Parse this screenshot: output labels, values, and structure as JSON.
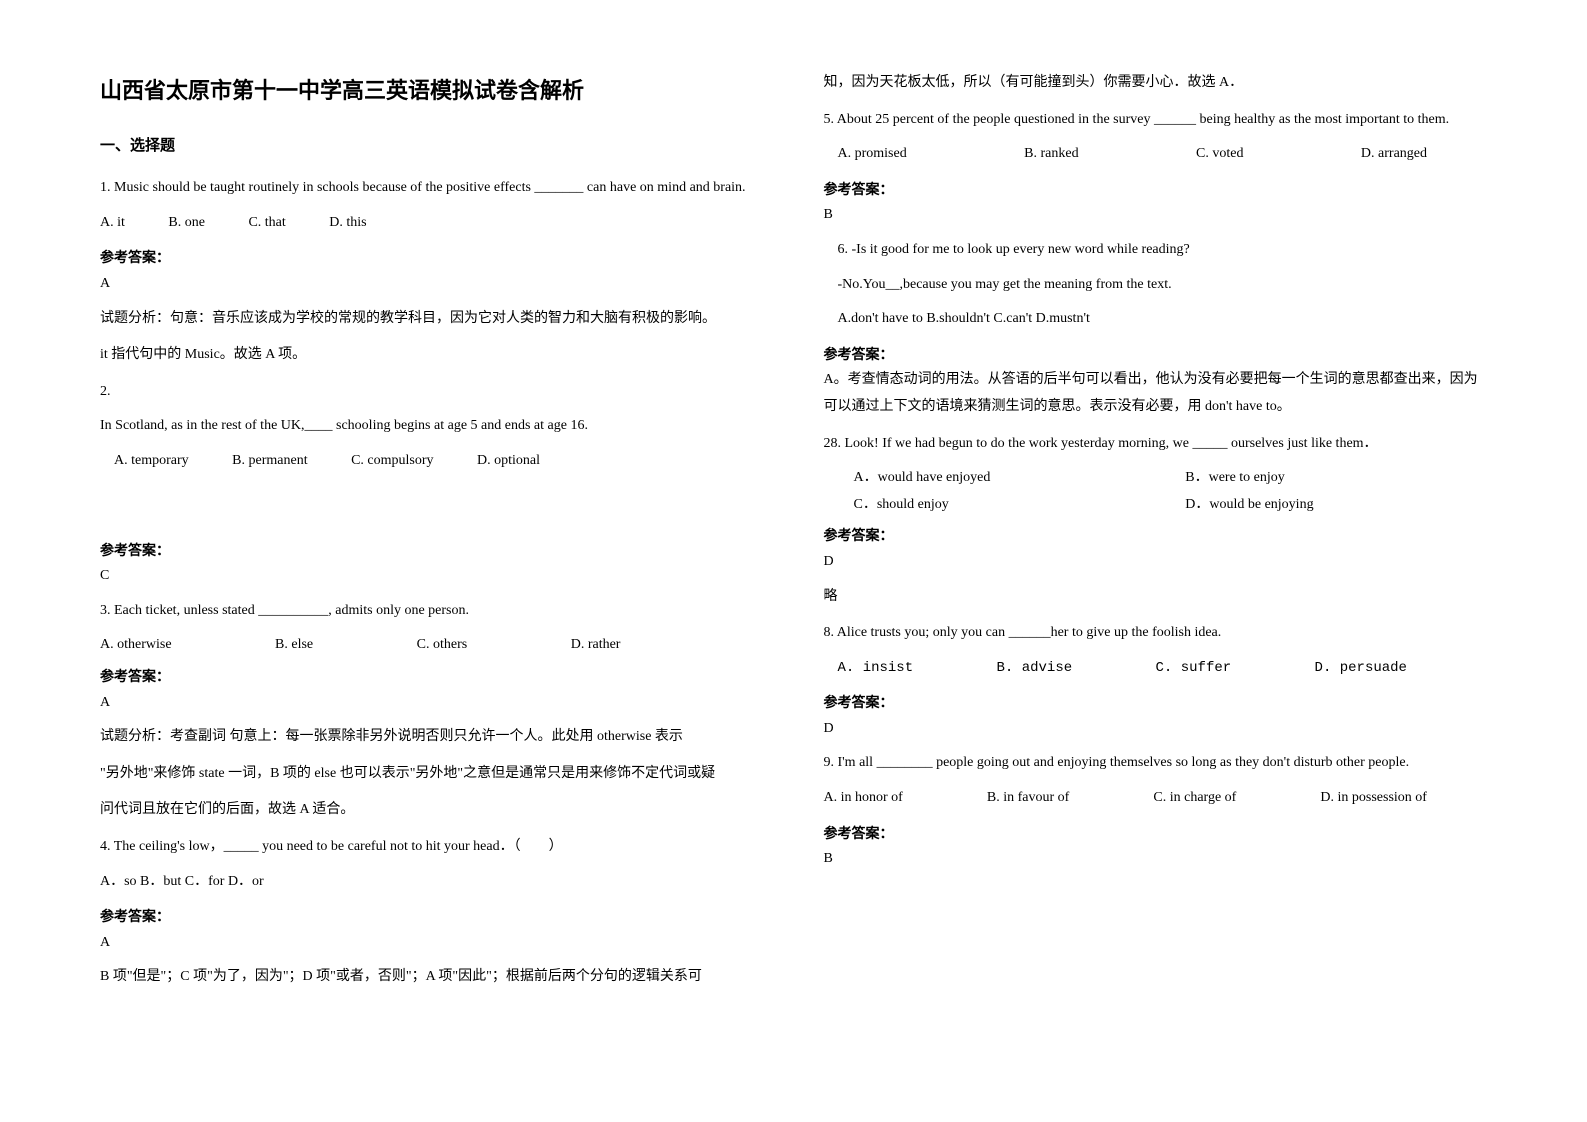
{
  "title": "山西省太原市第十一中学高三英语模拟试卷含解析",
  "section_title": "一、选择题",
  "answer_label": "参考答案：",
  "left": {
    "q1": {
      "text": "1. Music should be taught routinely in schools because of the positive effects _______ can have on mind and brain.",
      "opts": [
        "A. it",
        "B. one",
        "C. that",
        "D. this"
      ],
      "answer": "A",
      "explanation1": "试题分析：句意：音乐应该成为学校的常规的教学科目，因为它对人类的智力和大脑有积极的影响。",
      "explanation2": "it 指代句中的 Music。故选 A 项。"
    },
    "q2": {
      "num": "2.",
      "text": "In Scotland, as in the rest of the UK,____ schooling begins at age 5 and ends at age 16.",
      "opts": [
        "A. temporary",
        "B. permanent",
        "C. compulsory",
        "D. optional"
      ],
      "answer": "C"
    },
    "q3": {
      "text": "3. Each ticket, unless stated __________, admits only one person.",
      "opts": [
        "A. otherwise",
        "B. else",
        "C. others",
        "D. rather"
      ],
      "answer": "A",
      "explanation1": "试题分析：考查副词    句意上：每一张票除非另外说明否则只允许一个人。此处用 otherwise 表示",
      "explanation2": "\"另外地\"来修饰 state 一词，B 项的 else 也可以表示\"另外地\"之意但是通常只是用来修饰不定代词或疑",
      "explanation3": "问代词且放在它们的后面，故选 A 适合。"
    },
    "q4": {
      "text": "4. The ceiling's low，_____ you need to be careful not to hit your head．（　　）",
      "opts": "A．so   B．but  C．for  D．or",
      "answer": "A",
      "explanation": "B 项\"但是\"；C 项\"为了，因为\"；D 项\"或者，否则\"；A 项\"因此\"；根据前后两个分句的逻辑关系可"
    }
  },
  "right": {
    "q4_cont": "知，因为天花板太低，所以（有可能撞到头）你需要小心．故选 A．",
    "q5": {
      "text": "5. About 25 percent of the people questioned in the survey ______ being healthy as the most important to them.",
      "opts": [
        "A. promised",
        "B. ranked",
        "C. voted",
        "D. arranged"
      ],
      "answer": "B"
    },
    "q6": {
      "line1": "6. -Is it good for me to look up every new word while reading?",
      "line2": "-No.You__,because you may get the meaning from the text.",
      "opts": "A.don't have to   B.shouldn't   C.can't   D.mustn't",
      "answer_text": "A。考查情态动词的用法。从答语的后半句可以看出，他认为没有必要把每一个生词的意思都查出来，因为可以通过上下文的语境来猜测生词的意思。表示没有必要，用 don't have to。"
    },
    "q7": {
      "text": "28. Look! If we had begun to do the work yesterday morning, we _____ ourselves just like them．",
      "opts": [
        "A．would have enjoyed",
        "B．were to enjoy",
        "C．should enjoy",
        "D．would be enjoying"
      ],
      "answer": "D",
      "explanation": "略"
    },
    "q8": {
      "text": "8. Alice trusts you; only you can ______her to give up the foolish idea.",
      "opts": [
        "A. insist",
        "B. advise",
        "C. suffer",
        "D. persuade"
      ],
      "answer": "D"
    },
    "q9": {
      "text": "9. I'm all ________ people going out and enjoying themselves so long as they don't disturb other people.",
      "opts": [
        "A. in honor of",
        "B. in favour of",
        "C. in charge of",
        "D. in possession of"
      ],
      "answer": "B"
    }
  }
}
